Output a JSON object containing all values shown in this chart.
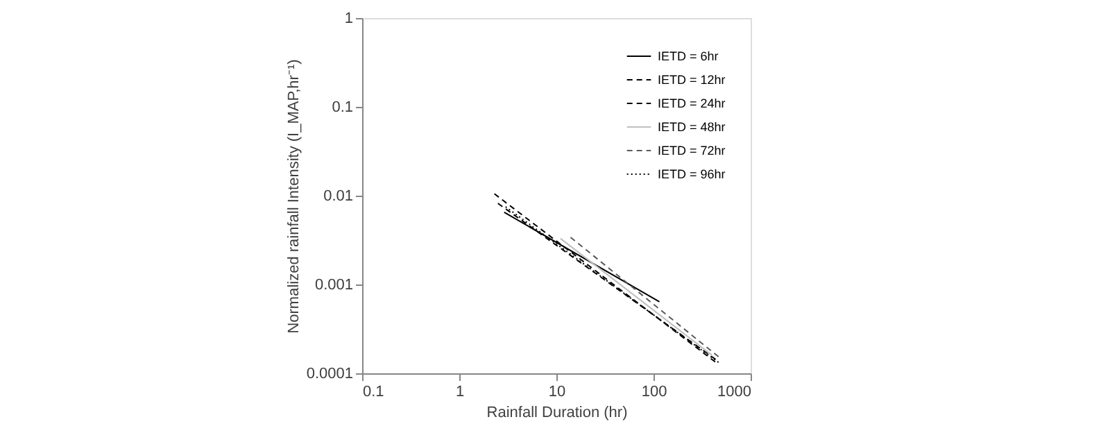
{
  "chart_data": {
    "type": "line",
    "xlabel": "Rainfall Duration (hr)",
    "ylabel": "Normalized rainfall Intensity (I_MAP,hr⁻¹)",
    "log": "xy",
    "xlim": [
      0.1,
      1000
    ],
    "xticks": [
      0.1,
      1,
      10,
      100,
      1000
    ],
    "ylim": [
      0.0001,
      1
    ],
    "yticks": [
      0.0001,
      0.001,
      0.01,
      0.1,
      1
    ],
    "grid": false,
    "legend": "top right",
    "marker": "none",
    "series": [
      {
        "name": "IETD = 6hr",
        "color": "#000000",
        "line_style": "solid",
        "x": [
          2.9,
          115
        ],
        "values": [
          0.0065,
          0.00064
        ]
      },
      {
        "name": "IETD = 12hr",
        "color": "#000000",
        "line_style": "dashed",
        "x": [
          2.5,
          450
        ],
        "values": [
          0.0082,
          0.00014
        ]
      },
      {
        "name": "IETD = 24hr",
        "color": "#000000",
        "line_style": "dashed",
        "x": [
          2.3,
          450
        ],
        "values": [
          0.0105,
          0.00013
        ]
      },
      {
        "name": "IETD = 48hr",
        "color": "#bfbfbf",
        "line_style": "solid",
        "x": [
          11,
          400
        ],
        "values": [
          0.0033,
          0.00016
        ]
      },
      {
        "name": "IETD = 72hr",
        "color": "#595959",
        "line_style": "dashed",
        "x": [
          14,
          480
        ],
        "values": [
          0.0034,
          0.00015
        ]
      },
      {
        "name": "IETD = 96hr",
        "color": "#000000",
        "line_style": "dotted",
        "x": [
          3,
          480
        ],
        "values": [
          0.0075,
          0.00013
        ]
      }
    ]
  }
}
